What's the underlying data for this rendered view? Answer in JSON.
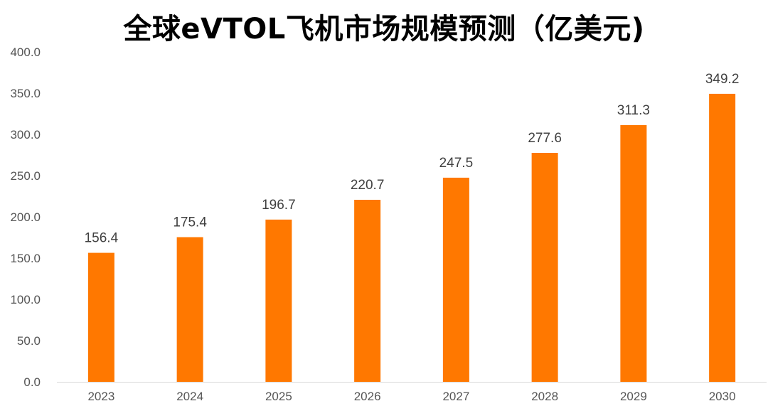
{
  "chart_data": {
    "type": "bar",
    "title": "全球eVTOL飞机市场规模预测（亿美元)",
    "categories": [
      "2023",
      "2024",
      "2025",
      "2026",
      "2027",
      "2028",
      "2029",
      "2030"
    ],
    "values": [
      156.4,
      175.4,
      196.7,
      220.7,
      247.5,
      277.6,
      311.3,
      349.2
    ],
    "value_labels": [
      "156.4",
      "175.4",
      "196.7",
      "220.7",
      "247.5",
      "277.6",
      "311.3",
      "349.2"
    ],
    "y_ticks": [
      "0.0",
      "50.0",
      "100.0",
      "150.0",
      "200.0",
      "250.0",
      "300.0",
      "350.0",
      "400.0"
    ],
    "ylim": [
      0,
      400
    ],
    "xlabel": "",
    "ylabel": "",
    "grid": false,
    "legend": "none",
    "colors": {
      "bar": "#FF7800",
      "axis": "#D9D9D9",
      "tick_text": "#555555",
      "data_label_text": "#404040",
      "title_text": "#000000"
    }
  }
}
